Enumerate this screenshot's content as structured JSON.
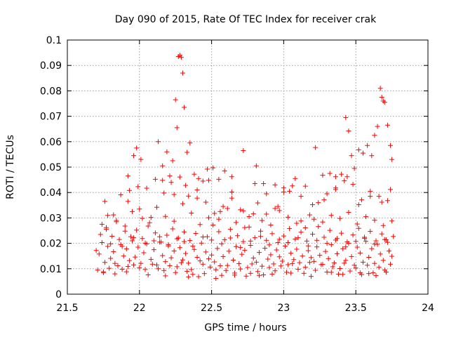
{
  "chart_data": {
    "type": "scatter",
    "title": "Day 090 of 2015, Rate Of TEC Index for receiver crak",
    "xlabel": "GPS time / hours",
    "ylabel": "ROTI / TECUs",
    "xlim": [
      21.5,
      24
    ],
    "ylim": [
      0,
      0.1
    ],
    "x_ticks": [
      21.5,
      22,
      22.5,
      23,
      23.5,
      24
    ],
    "x_tick_labels": [
      "21.5",
      "22",
      "22.5",
      "23",
      "23.5",
      "24"
    ],
    "y_ticks": [
      0,
      0.01,
      0.02,
      0.03,
      0.04,
      0.05,
      0.06,
      0.07,
      0.08,
      0.09,
      0.1
    ],
    "y_tick_labels": [
      "0",
      "0.01",
      "0.02",
      "0.03",
      "0.04",
      "0.05",
      "0.06",
      "0.07",
      "0.08",
      "0.09",
      "0.1"
    ],
    "grid": true,
    "marker": "+",
    "series": [
      {
        "name": "ROTI",
        "color": "#ff0000",
        "x": [
          21.7,
          21.72,
          21.74,
          21.76,
          21.78,
          21.8,
          21.82,
          21.85,
          21.87,
          21.89,
          21.91,
          21.93,
          21.95,
          21.97,
          21.99,
          22.01,
          22.03,
          22.05,
          22.08,
          22.1,
          22.12,
          22.14,
          22.16,
          22.18,
          22.2,
          22.22,
          22.24,
          22.26,
          22.28,
          22.3,
          22.32,
          22.34,
          22.36,
          22.38,
          22.4,
          22.42,
          22.44,
          22.46,
          22.48,
          22.5,
          22.52,
          22.54,
          22.56,
          22.58,
          22.6,
          22.62,
          22.65,
          22.67,
          22.69,
          22.71,
          22.73,
          22.75,
          22.77,
          22.79,
          22.81,
          22.83,
          22.85,
          22.87,
          22.89,
          22.91,
          22.93,
          22.95,
          22.97,
          22.99,
          23.01,
          23.03,
          23.05,
          23.07,
          23.09,
          23.11,
          23.13,
          23.15,
          23.17,
          23.19,
          23.21,
          23.23,
          23.25,
          23.27,
          23.29,
          23.31,
          23.33,
          23.35,
          23.37,
          23.39,
          23.41,
          23.43,
          23.45,
          23.47,
          23.49,
          23.51,
          23.53,
          23.55,
          23.57,
          23.59,
          23.61,
          23.63,
          23.65,
          23.67,
          23.69,
          23.71,
          23.73,
          23.75,
          21.71,
          21.75,
          21.79,
          21.83,
          21.88,
          21.92,
          21.96,
          22.0,
          22.04,
          22.09,
          22.13,
          22.17,
          22.21,
          22.25,
          22.29,
          22.33,
          22.37,
          22.41,
          22.45,
          22.49,
          22.53,
          22.57,
          22.61,
          22.66,
          22.7,
          22.74,
          22.78,
          22.82,
          22.86,
          22.9,
          22.94,
          22.98,
          23.02,
          23.06,
          23.1,
          23.14,
          23.18,
          23.22,
          23.26,
          23.3,
          23.34,
          23.38,
          23.42,
          23.46,
          23.5,
          23.54,
          23.58,
          23.62,
          23.66,
          23.7,
          23.74,
          21.73,
          21.77,
          21.81,
          21.86,
          21.9,
          21.94,
          21.98,
          22.02,
          22.06,
          22.11,
          22.15,
          22.19,
          22.23,
          22.27,
          22.31,
          22.35,
          22.39,
          22.43,
          22.47,
          22.51,
          22.55,
          22.59,
          22.63,
          22.68,
          22.72,
          22.76,
          22.8,
          22.84,
          22.88,
          22.92,
          22.96,
          23.0,
          23.04,
          23.08,
          23.12,
          23.16,
          23.2,
          23.24,
          23.28,
          23.32,
          23.36,
          23.4,
          23.44,
          23.48,
          23.52,
          23.56,
          23.6,
          23.64,
          23.68,
          23.72,
          23.76,
          21.74,
          21.78,
          21.84,
          21.9,
          21.95,
          22.02,
          22.07,
          22.12,
          22.18,
          22.24,
          22.3,
          22.36,
          22.42,
          22.48,
          22.55,
          22.61,
          22.67,
          22.73,
          22.79,
          22.85,
          22.91,
          22.97,
          23.03,
          23.09,
          23.15,
          23.21,
          23.27,
          23.33,
          23.39,
          23.45,
          23.51,
          23.57,
          23.63,
          23.69,
          23.75,
          21.76,
          21.82,
          21.87,
          21.93,
          21.99,
          22.05,
          22.11,
          22.17,
          22.22,
          22.28,
          22.34,
          22.4,
          22.46,
          22.52,
          22.58,
          22.64,
          22.7,
          22.76,
          22.82,
          22.88,
          22.94,
          23.0,
          23.06,
          23.12,
          23.18,
          23.24,
          23.3,
          23.36,
          23.42,
          23.48,
          23.54,
          23.6,
          23.66,
          23.72,
          21.77,
          21.84,
          21.92,
          22.0,
          22.08,
          22.16,
          22.24,
          22.32,
          22.4,
          22.48,
          22.56,
          22.64,
          22.72,
          22.8,
          22.88,
          22.96,
          23.04,
          23.12,
          23.2,
          23.28,
          23.36,
          23.44,
          23.52,
          23.6,
          23.68,
          23.74,
          21.8,
          21.88,
          21.96,
          22.04,
          22.1,
          22.14,
          22.2,
          22.26,
          22.31,
          22.37,
          22.44,
          22.5,
          22.57,
          22.63,
          22.7,
          22.77,
          22.84,
          22.9,
          22.97,
          23.03,
          23.1,
          23.17,
          23.23,
          23.3,
          23.37,
          23.43,
          23.5,
          23.56,
          23.63,
          23.7,
          21.92,
          21.96,
          21.98,
          22.01,
          22.13,
          22.16,
          22.19,
          22.21,
          22.23,
          22.25,
          22.26,
          22.27,
          22.28,
          22.29,
          22.3,
          22.31,
          22.33,
          22.35,
          22.38,
          22.41,
          22.44,
          22.47,
          22.51,
          22.55,
          22.59,
          22.64,
          22.72,
          22.81,
          22.86,
          22.94,
          23.0,
          23.08,
          23.15,
          23.22,
          23.27,
          23.32,
          23.36,
          23.4,
          23.43,
          23.45,
          23.47,
          23.49,
          23.52,
          23.55,
          23.58,
          23.61,
          23.63,
          23.65,
          23.67,
          23.68,
          23.69,
          23.7,
          23.72,
          23.74,
          23.75,
          21.75,
          21.83,
          21.91,
          22.06,
          22.18,
          22.34,
          22.53,
          22.66,
          22.77,
          22.83,
          22.92,
          23.05,
          23.19,
          23.33,
          23.41,
          23.53,
          23.59,
          23.64,
          23.71
        ],
        "y": [
          0.0172,
          0.0158,
          0.0203,
          0.0125,
          0.0188,
          0.0141,
          0.0167,
          0.0112,
          0.0195,
          0.015,
          0.0178,
          0.0132,
          0.021,
          0.0146,
          0.0185,
          0.0121,
          0.0163,
          0.0198,
          0.0137,
          0.0175,
          0.0115,
          0.0205,
          0.0152,
          0.0128,
          0.019,
          0.0143,
          0.017,
          0.0108,
          0.0183,
          0.0135,
          0.016,
          0.0122,
          0.0097,
          0.0176,
          0.0145,
          0.0131,
          0.0118,
          0.0166,
          0.0139,
          0.0154,
          0.0127,
          0.018,
          0.0112,
          0.0148,
          0.0093,
          0.0169,
          0.0134,
          0.0187,
          0.012,
          0.0157,
          0.0173,
          0.0105,
          0.0192,
          0.0142,
          0.0126,
          0.0164,
          0.011,
          0.0181,
          0.0138,
          0.0155,
          0.0119,
          0.0174,
          0.0147,
          0.013,
          0.0189,
          0.0116,
          0.0161,
          0.0136,
          0.0177,
          0.0124,
          0.015,
          0.0106,
          0.0171,
          0.0144,
          0.0129,
          0.0186,
          0.0153,
          0.0117,
          0.0168,
          0.014,
          0.0195,
          0.0123,
          0.0159,
          0.0101,
          0.0179,
          0.0133,
          0.02,
          0.0148,
          0.0114,
          0.0185,
          0.0162,
          0.0126,
          0.0208,
          0.0145,
          0.0179,
          0.0121,
          0.0196,
          0.0158,
          0.0133,
          0.0214,
          0.017,
          0.0149,
          0.0095,
          0.0088,
          0.0102,
          0.0121,
          0.0098,
          0.0109,
          0.0115,
          0.0104,
          0.0097,
          0.0118,
          0.01,
          0.0093,
          0.0112,
          0.0085,
          0.0124,
          0.009,
          0.0078,
          0.0069,
          0.0081,
          0.0107,
          0.0096,
          0.0074,
          0.0113,
          0.0083,
          0.0099,
          0.0071,
          0.0119,
          0.0089,
          0.0076,
          0.0105,
          0.0092,
          0.0111,
          0.0086,
          0.012,
          0.0098,
          0.0082,
          0.0125,
          0.0094,
          0.0116,
          0.0087,
          0.0108,
          0.0079,
          0.0122,
          0.0091,
          0.0103,
          0.0077,
          0.0114,
          0.0084,
          0.0106,
          0.0095,
          0.0118,
          0.0235,
          0.0262,
          0.0228,
          0.0215,
          0.0248,
          0.0226,
          0.0252,
          0.0219,
          0.0268,
          0.0241,
          0.0205,
          0.0232,
          0.0257,
          0.0221,
          0.0245,
          0.0211,
          0.0239,
          0.0201,
          0.0226,
          0.0272,
          0.0246,
          0.0214,
          0.0255,
          0.023,
          0.0207,
          0.0264,
          0.0222,
          0.0248,
          0.0212,
          0.0238,
          0.0203,
          0.0229,
          0.0258,
          0.0217,
          0.0244,
          0.0209,
          0.0236,
          0.0266,
          0.0224,
          0.0251,
          0.0213,
          0.024,
          0.0206,
          0.0233,
          0.0259,
          0.022,
          0.0247,
          0.021,
          0.0237,
          0.0204,
          0.0227,
          0.0275,
          0.031,
          0.029,
          0.0268,
          0.0325,
          0.0298,
          0.0281,
          0.0342,
          0.0306,
          0.0287,
          0.0356,
          0.0319,
          0.0274,
          0.0301,
          0.0295,
          0.0337,
          0.0282,
          0.0262,
          0.0316,
          0.029,
          0.0272,
          0.0329,
          0.0303,
          0.0279,
          0.0261,
          0.0295,
          0.0284,
          0.031,
          0.0298,
          0.0322,
          0.0276,
          0.0305,
          0.0291,
          0.027,
          0.0288,
          0.0365,
          0.0312,
          0.0391,
          0.0408,
          0.0423,
          0.0417,
          0.0452,
          0.0398,
          0.044,
          0.0461,
          0.0386,
          0.041,
          0.0362,
          0.0318,
          0.0345,
          0.0378,
          0.0332,
          0.0305,
          0.0359,
          0.0315,
          0.0337,
          0.0402,
          0.0426,
          0.0385,
          0.0312,
          0.036,
          0.0395,
          0.0418,
          0.0446,
          0.0432,
          0.0371,
          0.0405,
          0.0385,
          0.0368,
          0.0255,
          0.0285,
          0.0365,
          0.0335,
          0.0302,
          0.0448,
          0.0392,
          0.0428,
          0.0378,
          0.0448,
          0.0325,
          0.0402,
          0.0328,
          0.0435,
          0.0395,
          0.0345,
          0.0405,
          0.0288,
          0.0352,
          0.0371,
          0.0412,
          0.0462,
          0.0352,
          0.0385,
          0.0362,
          0.0412,
          0.0198,
          0.0188,
          0.0222,
          0.0201,
          0.021,
          0.0226,
          0.0195,
          0.0218,
          0.0207,
          0.0189,
          0.0225,
          0.0213,
          0.0198,
          0.0221,
          0.0184,
          0.0209,
          0.0227,
          0.0194,
          0.0216,
          0.0203,
          0.0222,
          0.019,
          0.0212,
          0.02,
          0.0219,
          0.0186,
          0.0208,
          0.0224,
          0.0197,
          0.0215,
          0.0465,
          0.0545,
          0.0575,
          0.053,
          0.06,
          0.0505,
          0.056,
          0.0465,
          0.0525,
          0.0765,
          0.0655,
          0.0935,
          0.094,
          0.0932,
          0.087,
          0.0735,
          0.0558,
          0.0595,
          0.0472,
          0.0455,
          0.0445,
          0.0492,
          0.0497,
          0.0452,
          0.0485,
          0.0462,
          0.0565,
          0.0505,
          0.0435,
          0.043,
          0.0418,
          0.0455,
          0.0425,
          0.0577,
          0.0468,
          0.0475,
          0.0462,
          0.0472,
          0.0695,
          0.0642,
          0.0545,
          0.0495,
          0.0568,
          0.0555,
          0.0585,
          0.0545,
          0.0625,
          0.066,
          0.081,
          0.0775,
          0.076,
          0.0755,
          0.0665,
          0.0585,
          0.053,
          0.0085,
          0.008,
          0.0088,
          0.0076,
          0.0072,
          0.0068,
          0.0062,
          0.0075,
          0.0082,
          0.0074,
          0.0079,
          0.0083,
          0.007,
          0.0086,
          0.0078,
          0.0084,
          0.0081,
          0.0073,
          0.0087
        ]
      }
    ]
  }
}
